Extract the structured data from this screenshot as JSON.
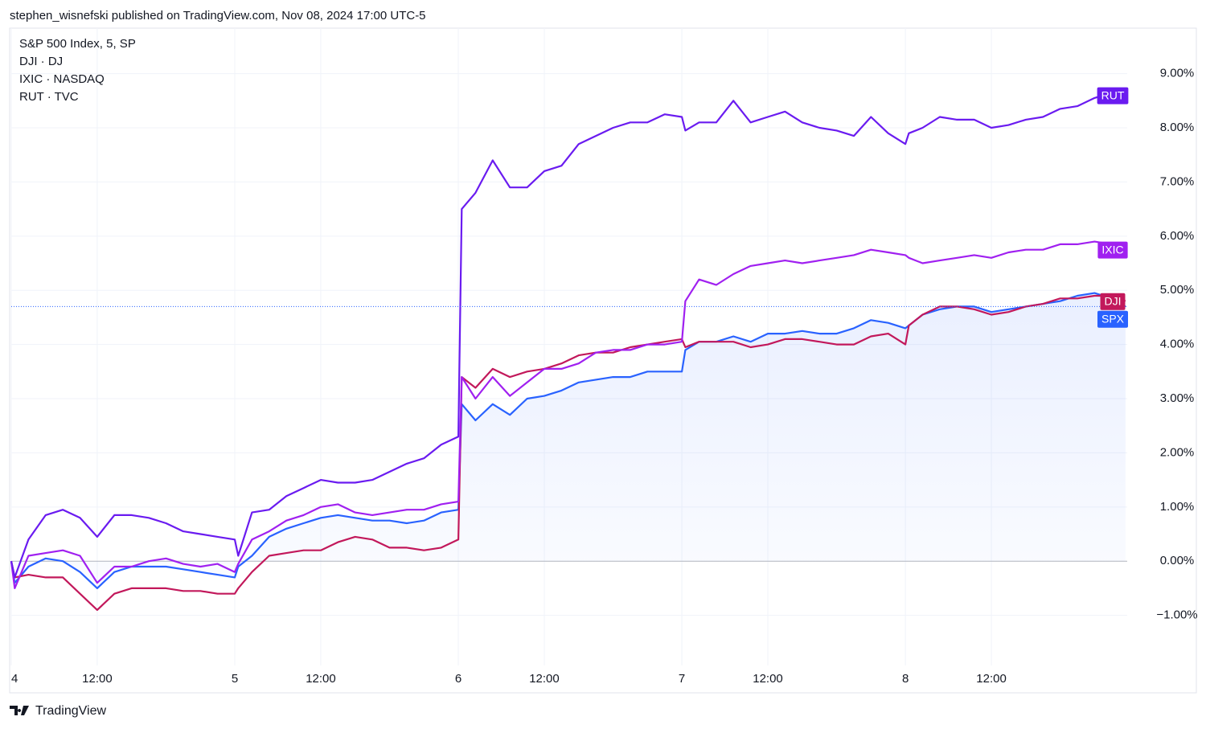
{
  "chart_data": {
    "type": "line",
    "header": "stephen_wisnefski published on TradingView.com, Nov 08, 2024 17:00 UTC-5",
    "brand": "TradingView",
    "x": [
      0,
      0.1,
      0.5,
      1,
      1.5,
      2,
      2.5,
      3,
      3.5,
      4,
      4.5,
      5,
      5.5,
      6,
      6.5,
      6.6,
      7,
      7.5,
      8,
      8.5,
      9,
      9.5,
      10,
      10.5,
      11,
      11.5,
      12,
      12.5,
      13,
      13.1,
      13.5,
      14,
      14.5,
      15,
      15.5,
      16,
      16.5,
      17,
      17.5,
      18,
      18.5,
      19,
      19.5,
      19.6,
      20,
      20.5,
      21,
      21.5,
      22,
      22.5,
      23,
      23.5,
      24,
      24.5,
      25,
      25.5,
      26,
      26.1,
      26.5,
      27,
      27.5,
      28,
      28.5,
      29,
      29.5,
      30,
      30.5,
      31,
      31.5,
      32,
      32.4
    ],
    "xlim": [
      0,
      32.45
    ],
    "xticks": [
      {
        "value": 0,
        "label": "4"
      },
      {
        "value": 2.5,
        "label": "12:00"
      },
      {
        "value": 6.5,
        "label": "5"
      },
      {
        "value": 9,
        "label": "12:00"
      },
      {
        "value": 13,
        "label": "6"
      },
      {
        "value": 15.5,
        "label": "12:00"
      },
      {
        "value": 19.5,
        "label": "7"
      },
      {
        "value": 22,
        "label": "12:00"
      },
      {
        "value": 26,
        "label": "8"
      },
      {
        "value": 28.5,
        "label": "12:00"
      }
    ],
    "ylim": [
      -2.43,
      9.84
    ],
    "yticks": [
      {
        "value": -1,
        "label": "−1.00%"
      },
      {
        "value": 0,
        "label": "0.00%"
      },
      {
        "value": 1,
        "label": "1.00%"
      },
      {
        "value": 2,
        "label": "2.00%"
      },
      {
        "value": 3,
        "label": "3.00%"
      },
      {
        "value": 4,
        "label": "4.00%"
      },
      {
        "value": 5,
        "label": "5.00%"
      },
      {
        "value": 6,
        "label": "6.00%"
      },
      {
        "value": 7,
        "label": "7.00%"
      },
      {
        "value": 8,
        "label": "8.00%"
      },
      {
        "value": 9,
        "label": "9.00%"
      }
    ],
    "grid": true,
    "series": [
      {
        "name": "S&P 500 Index, 5, SP",
        "symbol": "SPX",
        "color": "#2962ff",
        "area": true,
        "values": [
          0,
          -0.4,
          -0.1,
          0.05,
          0,
          -0.2,
          -0.5,
          -0.2,
          -0.1,
          -0.1,
          -0.1,
          -0.15,
          -0.2,
          -0.25,
          -0.3,
          -0.1,
          0.1,
          0.45,
          0.6,
          0.7,
          0.8,
          0.85,
          0.8,
          0.75,
          0.75,
          0.7,
          0.75,
          0.9,
          0.95,
          2.9,
          2.6,
          2.9,
          2.7,
          3.0,
          3.05,
          3.15,
          3.3,
          3.35,
          3.4,
          3.4,
          3.5,
          3.5,
          3.5,
          3.9,
          4.05,
          4.05,
          4.15,
          4.05,
          4.2,
          4.2,
          4.25,
          4.2,
          4.2,
          4.3,
          4.45,
          4.4,
          4.3,
          4.35,
          4.55,
          4.65,
          4.7,
          4.7,
          4.6,
          4.65,
          4.7,
          4.75,
          4.8,
          4.9,
          4.95,
          4.85,
          4.7
        ]
      },
      {
        "name": "DJI · DJ",
        "symbol": "DJI",
        "color": "#c2185b",
        "values": [
          0,
          -0.3,
          -0.25,
          -0.3,
          -0.3,
          -0.6,
          -0.9,
          -0.6,
          -0.5,
          -0.5,
          -0.5,
          -0.55,
          -0.55,
          -0.6,
          -0.6,
          -0.5,
          -0.2,
          0.1,
          0.15,
          0.2,
          0.2,
          0.35,
          0.45,
          0.4,
          0.25,
          0.25,
          0.2,
          0.25,
          0.4,
          3.4,
          3.2,
          3.55,
          3.4,
          3.5,
          3.55,
          3.65,
          3.8,
          3.85,
          3.85,
          3.95,
          4.0,
          4.05,
          4.1,
          3.95,
          4.05,
          4.05,
          4.05,
          3.95,
          4.0,
          4.1,
          4.1,
          4.05,
          4.0,
          4.0,
          4.15,
          4.2,
          4.0,
          4.35,
          4.55,
          4.7,
          4.7,
          4.65,
          4.55,
          4.6,
          4.7,
          4.75,
          4.85,
          4.85,
          4.9,
          4.9,
          4.8
        ]
      },
      {
        "name": "IXIC · NASDAQ",
        "symbol": "IXIC",
        "color": "#a020f0",
        "values": [
          0,
          -0.5,
          0.1,
          0.15,
          0.2,
          0.1,
          -0.4,
          -0.1,
          -0.1,
          0,
          0.05,
          -0.05,
          -0.1,
          -0.05,
          -0.2,
          -0.05,
          0.4,
          0.55,
          0.75,
          0.85,
          1.0,
          1.05,
          0.9,
          0.85,
          0.9,
          0.95,
          0.95,
          1.05,
          1.1,
          3.4,
          3.0,
          3.4,
          3.05,
          3.3,
          3.55,
          3.55,
          3.65,
          3.85,
          3.9,
          3.9,
          4.0,
          4.0,
          4.05,
          4.8,
          5.2,
          5.1,
          5.3,
          5.45,
          5.5,
          5.55,
          5.5,
          5.55,
          5.6,
          5.65,
          5.75,
          5.7,
          5.65,
          5.6,
          5.5,
          5.55,
          5.6,
          5.65,
          5.6,
          5.7,
          5.75,
          5.75,
          5.85,
          5.85,
          5.9,
          5.85,
          5.75
        ]
      },
      {
        "name": "RUT · TVC",
        "symbol": "RUT",
        "color": "#6a1bf0",
        "values": [
          0,
          -0.3,
          0.4,
          0.85,
          0.95,
          0.8,
          0.45,
          0.85,
          0.85,
          0.8,
          0.7,
          0.55,
          0.5,
          0.45,
          0.4,
          0.1,
          0.9,
          0.95,
          1.2,
          1.35,
          1.5,
          1.45,
          1.45,
          1.5,
          1.65,
          1.8,
          1.9,
          2.15,
          2.3,
          6.5,
          6.8,
          7.4,
          6.9,
          6.9,
          7.2,
          7.3,
          7.7,
          7.85,
          8.0,
          8.1,
          8.1,
          8.25,
          8.2,
          7.95,
          8.1,
          8.1,
          8.5,
          8.1,
          8.2,
          8.3,
          8.1,
          8.0,
          7.95,
          7.85,
          8.2,
          7.9,
          7.7,
          7.9,
          8.0,
          8.2,
          8.15,
          8.15,
          8.0,
          8.05,
          8.15,
          8.2,
          8.35,
          8.4,
          8.55,
          8.65,
          8.6
        ]
      }
    ]
  }
}
